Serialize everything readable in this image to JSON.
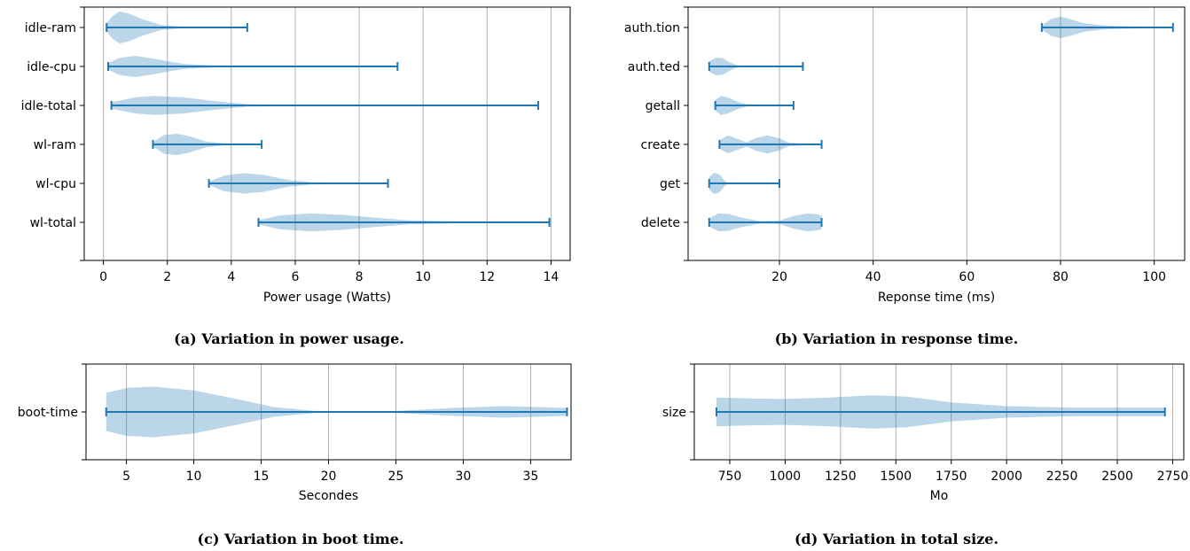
{
  "chart_data": [
    {
      "type": "violin",
      "orientation": "horizontal",
      "caption": "(a) Variation in power usage.",
      "xlabel": "Power usage (Watts)",
      "ylabel": "",
      "xlim": [
        -0.6,
        14.6
      ],
      "xticks": [
        0,
        2,
        4,
        6,
        8,
        10,
        12,
        14
      ],
      "grid": "vertical",
      "categories": [
        "idle-ram",
        "idle-cpu",
        "idle-total",
        "wl-ram",
        "wl-cpu",
        "wl-total"
      ],
      "series": [
        {
          "name": "idle-ram",
          "min": 0.1,
          "max": 4.5,
          "density": [
            [
              0.1,
              0.2
            ],
            [
              0.3,
              0.55
            ],
            [
              0.5,
              0.75
            ],
            [
              0.8,
              0.65
            ],
            [
              1.2,
              0.4
            ],
            [
              1.8,
              0.12
            ],
            [
              2.5,
              0.03
            ],
            [
              4.5,
              0.0
            ]
          ]
        },
        {
          "name": "idle-cpu",
          "min": 0.15,
          "max": 9.2,
          "density": [
            [
              0.15,
              0.15
            ],
            [
              0.5,
              0.4
            ],
            [
              1.0,
              0.5
            ],
            [
              1.5,
              0.38
            ],
            [
              2.5,
              0.12
            ],
            [
              3.5,
              0.04
            ],
            [
              9.2,
              0.0
            ]
          ]
        },
        {
          "name": "idle-total",
          "min": 0.25,
          "max": 13.6,
          "density": [
            [
              0.25,
              0.15
            ],
            [
              1.0,
              0.38
            ],
            [
              1.6,
              0.45
            ],
            [
              2.5,
              0.38
            ],
            [
              3.5,
              0.2
            ],
            [
              4.5,
              0.06
            ],
            [
              6.0,
              0.02
            ],
            [
              13.6,
              0.0
            ]
          ]
        },
        {
          "name": "wl-ram",
          "min": 1.55,
          "max": 4.95,
          "density": [
            [
              1.55,
              0.1
            ],
            [
              1.9,
              0.45
            ],
            [
              2.3,
              0.5
            ],
            [
              2.7,
              0.38
            ],
            [
              3.2,
              0.14
            ],
            [
              3.8,
              0.04
            ],
            [
              4.95,
              0.0
            ]
          ]
        },
        {
          "name": "wl-cpu",
          "min": 3.3,
          "max": 8.9,
          "density": [
            [
              3.3,
              0.08
            ],
            [
              3.8,
              0.38
            ],
            [
              4.4,
              0.48
            ],
            [
              5.0,
              0.4
            ],
            [
              5.8,
              0.16
            ],
            [
              6.5,
              0.05
            ],
            [
              8.9,
              0.0
            ]
          ]
        },
        {
          "name": "wl-total",
          "min": 4.85,
          "max": 13.95,
          "density": [
            [
              4.85,
              0.1
            ],
            [
              5.5,
              0.32
            ],
            [
              6.5,
              0.42
            ],
            [
              7.5,
              0.35
            ],
            [
              8.5,
              0.22
            ],
            [
              9.5,
              0.1
            ],
            [
              11.0,
              0.04
            ],
            [
              13.95,
              0.02
            ]
          ]
        }
      ]
    },
    {
      "type": "violin",
      "orientation": "horizontal",
      "caption": "(b) Variation in response time.",
      "xlabel": "Reponse time (ms)",
      "ylabel": "",
      "xlim": [
        0.5,
        106.5
      ],
      "xticks": [
        20,
        40,
        60,
        80,
        100
      ],
      "grid": "vertical",
      "categories": [
        "auth.tion",
        "auth.ted",
        "getall",
        "create",
        "get",
        "delete"
      ],
      "series": [
        {
          "name": "auth.tion",
          "min": 76,
          "max": 104,
          "density": [
            [
              76,
              0.1
            ],
            [
              78,
              0.4
            ],
            [
              80,
              0.5
            ],
            [
              82,
              0.4
            ],
            [
              85,
              0.2
            ],
            [
              90,
              0.08
            ],
            [
              104,
              0.0
            ]
          ]
        },
        {
          "name": "auth.ted",
          "min": 5,
          "max": 25,
          "density": [
            [
              5,
              0.25
            ],
            [
              6.5,
              0.42
            ],
            [
              8,
              0.38
            ],
            [
              9.5,
              0.18
            ],
            [
              11,
              0.05
            ],
            [
              14,
              0.0
            ],
            [
              25,
              0.0
            ]
          ]
        },
        {
          "name": "getall",
          "min": 6.3,
          "max": 23,
          "density": [
            [
              6.3,
              0.25
            ],
            [
              7.5,
              0.45
            ],
            [
              9,
              0.38
            ],
            [
              11,
              0.18
            ],
            [
              13,
              0.05
            ],
            [
              23,
              0.0
            ]
          ]
        },
        {
          "name": "create",
          "min": 7.2,
          "max": 29,
          "density": [
            [
              7.2,
              0.2
            ],
            [
              9,
              0.42
            ],
            [
              10.5,
              0.3
            ],
            [
              13,
              0.1
            ],
            [
              15,
              0.3
            ],
            [
              17.5,
              0.42
            ],
            [
              20,
              0.28
            ],
            [
              22,
              0.08
            ],
            [
              29,
              0.0
            ]
          ]
        },
        {
          "name": "get",
          "min": 5,
          "max": 20,
          "density": [
            [
              5,
              0.3
            ],
            [
              6,
              0.5
            ],
            [
              7.2,
              0.42
            ],
            [
              8.2,
              0.15
            ],
            [
              9,
              0.0
            ],
            [
              20,
              0.0
            ]
          ]
        },
        {
          "name": "delete",
          "min": 5,
          "max": 29,
          "density": [
            [
              5,
              0.2
            ],
            [
              7,
              0.42
            ],
            [
              9,
              0.4
            ],
            [
              12,
              0.22
            ],
            [
              16,
              0.05
            ],
            [
              20,
              0.08
            ],
            [
              23,
              0.3
            ],
            [
              26,
              0.42
            ],
            [
              28,
              0.38
            ],
            [
              29,
              0.32
            ]
          ]
        }
      ]
    },
    {
      "type": "violin",
      "orientation": "horizontal",
      "caption": "(c) Variation in boot time.",
      "xlabel": "Secondes",
      "ylabel": "",
      "xlim": [
        2,
        38
      ],
      "xticks": [
        5,
        10,
        15,
        20,
        25,
        30,
        35
      ],
      "grid": "vertical",
      "categories": [
        "boot-time"
      ],
      "series": [
        {
          "name": "boot-time",
          "min": 3.5,
          "max": 37.7,
          "density": [
            [
              3.5,
              0.4
            ],
            [
              5,
              0.5
            ],
            [
              7,
              0.53
            ],
            [
              10,
              0.45
            ],
            [
              13,
              0.28
            ],
            [
              16,
              0.1
            ],
            [
              19,
              0.02
            ],
            [
              22,
              0.0
            ],
            [
              25,
              0.02
            ],
            [
              29,
              0.08
            ],
            [
              33,
              0.12
            ],
            [
              36,
              0.1
            ],
            [
              37.7,
              0.08
            ]
          ]
        }
      ]
    },
    {
      "type": "violin",
      "orientation": "horizontal",
      "caption": "(d) Variation in total size.",
      "xlabel": "Mo",
      "ylabel": "",
      "xlim": [
        590,
        2800
      ],
      "xticks": [
        750,
        1000,
        1250,
        1500,
        1750,
        2000,
        2250,
        2500,
        2750
      ],
      "grid": "vertical",
      "categories": [
        "size"
      ],
      "series": [
        {
          "name": "size",
          "min": 690,
          "max": 2715,
          "density": [
            [
              690,
              0.3
            ],
            [
              850,
              0.28
            ],
            [
              1000,
              0.27
            ],
            [
              1200,
              0.3
            ],
            [
              1400,
              0.35
            ],
            [
              1550,
              0.32
            ],
            [
              1750,
              0.2
            ],
            [
              2000,
              0.12
            ],
            [
              2300,
              0.09
            ],
            [
              2600,
              0.09
            ],
            [
              2715,
              0.09
            ]
          ]
        }
      ]
    }
  ]
}
